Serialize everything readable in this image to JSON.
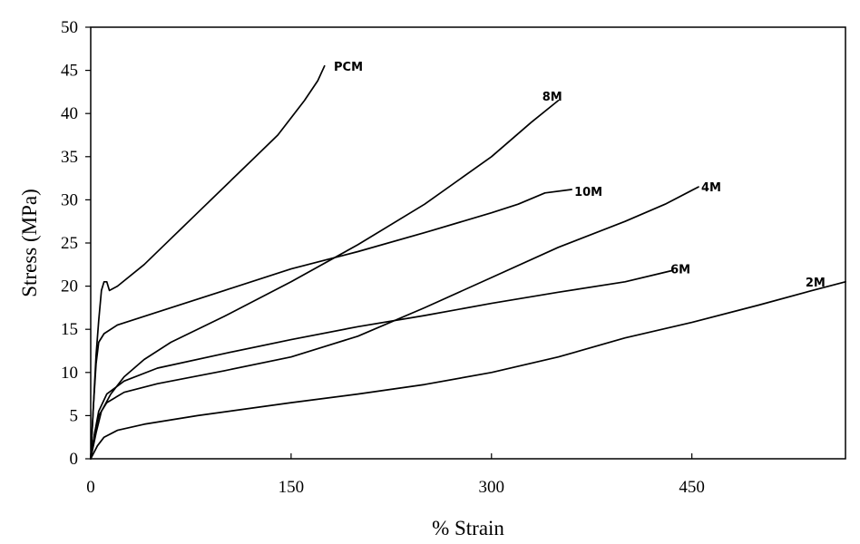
{
  "chart_data": {
    "type": "line",
    "xlabel": "% Strain",
    "ylabel": "Stress (MPa)",
    "xlim": [
      0,
      565
    ],
    "ylim": [
      0,
      50
    ],
    "xticks": [
      0,
      150,
      300,
      450
    ],
    "yticks": [
      0,
      5,
      10,
      15,
      20,
      25,
      30,
      35,
      40,
      45,
      50
    ],
    "grid": false,
    "series": [
      {
        "name": "PCM",
        "label_at": [
          182,
          45.5
        ],
        "points": [
          [
            0,
            0
          ],
          [
            2,
            6
          ],
          [
            4,
            12
          ],
          [
            6,
            16
          ],
          [
            8,
            19.5
          ],
          [
            10,
            20.5
          ],
          [
            12,
            20.5
          ],
          [
            14,
            19.5
          ],
          [
            20,
            20
          ],
          [
            40,
            22.5
          ],
          [
            60,
            25.5
          ],
          [
            80,
            28.5
          ],
          [
            100,
            31.5
          ],
          [
            120,
            34.5
          ],
          [
            140,
            37.5
          ],
          [
            160,
            41.5
          ],
          [
            170,
            43.8
          ],
          [
            175,
            45.5
          ]
        ]
      },
      {
        "name": "8M",
        "label_at": [
          338,
          42
        ],
        "points": [
          [
            0,
            0
          ],
          [
            4,
            3
          ],
          [
            8,
            5.5
          ],
          [
            15,
            7.5
          ],
          [
            25,
            9.5
          ],
          [
            40,
            11.5
          ],
          [
            60,
            13.5
          ],
          [
            100,
            16.5
          ],
          [
            150,
            20.5
          ],
          [
            200,
            24.8
          ],
          [
            250,
            29.5
          ],
          [
            300,
            35
          ],
          [
            330,
            39
          ],
          [
            350,
            41.5
          ]
        ]
      },
      {
        "name": "10M",
        "label_at": [
          362,
          31
        ],
        "points": [
          [
            0,
            0
          ],
          [
            2,
            6
          ],
          [
            4,
            11
          ],
          [
            6,
            13.5
          ],
          [
            10,
            14.5
          ],
          [
            20,
            15.5
          ],
          [
            50,
            17
          ],
          [
            100,
            19.5
          ],
          [
            150,
            22
          ],
          [
            200,
            24
          ],
          [
            250,
            26.2
          ],
          [
            300,
            28.5
          ],
          [
            320,
            29.5
          ],
          [
            340,
            30.8
          ],
          [
            360,
            31.2
          ]
        ]
      },
      {
        "name": "4M",
        "label_at": [
          457,
          31.5
        ],
        "points": [
          [
            0,
            0
          ],
          [
            3,
            3
          ],
          [
            6,
            5
          ],
          [
            12,
            6.5
          ],
          [
            25,
            7.7
          ],
          [
            50,
            8.7
          ],
          [
            100,
            10.2
          ],
          [
            150,
            11.8
          ],
          [
            200,
            14.2
          ],
          [
            250,
            17.5
          ],
          [
            300,
            21
          ],
          [
            350,
            24.5
          ],
          [
            400,
            27.5
          ],
          [
            430,
            29.5
          ],
          [
            455,
            31.5
          ]
        ]
      },
      {
        "name": "6M",
        "label_at": [
          434,
          22
        ],
        "points": [
          [
            0,
            0
          ],
          [
            3,
            3
          ],
          [
            6,
            5.5
          ],
          [
            12,
            7.5
          ],
          [
            25,
            9
          ],
          [
            50,
            10.5
          ],
          [
            100,
            12.2
          ],
          [
            150,
            13.8
          ],
          [
            200,
            15.3
          ],
          [
            250,
            16.6
          ],
          [
            300,
            18
          ],
          [
            350,
            19.3
          ],
          [
            400,
            20.5
          ],
          [
            435,
            21.8
          ]
        ]
      },
      {
        "name": "2M",
        "label_at": [
          535,
          20.5
        ],
        "points": [
          [
            0,
            0
          ],
          [
            5,
            1.5
          ],
          [
            10,
            2.5
          ],
          [
            20,
            3.3
          ],
          [
            40,
            4
          ],
          [
            80,
            5
          ],
          [
            150,
            6.5
          ],
          [
            200,
            7.5
          ],
          [
            250,
            8.6
          ],
          [
            300,
            10
          ],
          [
            350,
            11.8
          ],
          [
            400,
            14
          ],
          [
            450,
            15.8
          ],
          [
            500,
            17.8
          ],
          [
            540,
            19.5
          ],
          [
            565,
            20.5
          ]
        ]
      }
    ]
  }
}
